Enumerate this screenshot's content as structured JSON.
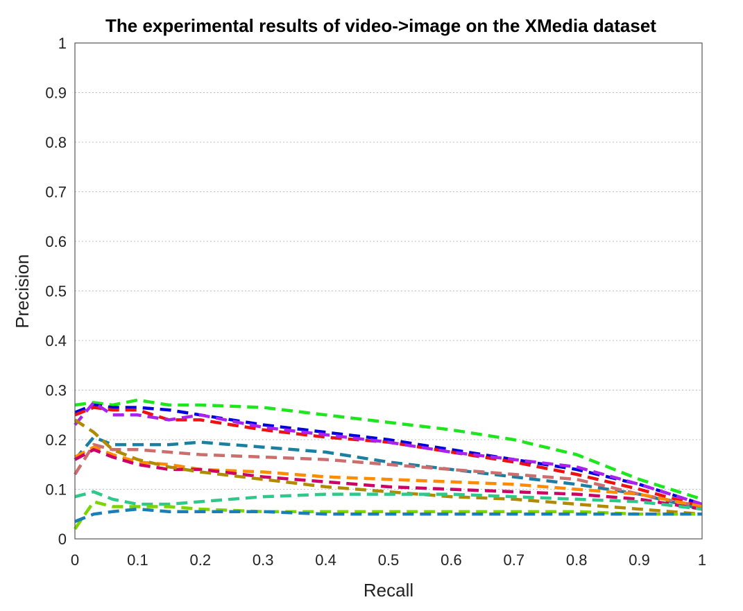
{
  "chart_data": {
    "type": "line",
    "title": "The experimental results of video->image on the XMedia dataset",
    "xlabel": "Recall",
    "ylabel": "Precision",
    "xlim": [
      0,
      1
    ],
    "ylim": [
      0,
      1
    ],
    "xticks": [
      "0",
      "0.1",
      "0.2",
      "0.3",
      "0.4",
      "0.5",
      "0.6",
      "0.7",
      "0.8",
      "0.9",
      "1"
    ],
    "yticks": [
      "0",
      "0.1",
      "0.2",
      "0.3",
      "0.4",
      "0.5",
      "0.6",
      "0.7",
      "0.8",
      "0.9",
      "1"
    ],
    "grid": "horizontal dotted",
    "x": [
      0,
      0.03,
      0.06,
      0.1,
      0.15,
      0.2,
      0.3,
      0.4,
      0.5,
      0.6,
      0.7,
      0.8,
      0.9,
      1.0
    ],
    "series": [
      {
        "color": "#1ee61e",
        "values": [
          0.27,
          0.275,
          0.27,
          0.28,
          0.27,
          0.27,
          0.265,
          0.25,
          0.235,
          0.22,
          0.2,
          0.17,
          0.12,
          0.08
        ]
      },
      {
        "color": "#0000dd",
        "values": [
          0.255,
          0.27,
          0.265,
          0.265,
          0.26,
          0.25,
          0.23,
          0.215,
          0.2,
          0.18,
          0.16,
          0.14,
          0.11,
          0.07
        ]
      },
      {
        "color": "#ee1111",
        "values": [
          0.25,
          0.265,
          0.26,
          0.26,
          0.24,
          0.24,
          0.22,
          0.205,
          0.195,
          0.175,
          0.155,
          0.13,
          0.1,
          0.065
        ]
      },
      {
        "color": "#aa22ee",
        "values": [
          0.23,
          0.275,
          0.25,
          0.25,
          0.24,
          0.25,
          0.225,
          0.21,
          0.195,
          0.175,
          0.16,
          0.145,
          0.11,
          0.07
        ]
      },
      {
        "color": "#1a7fa0",
        "values": [
          0.16,
          0.205,
          0.19,
          0.19,
          0.19,
          0.195,
          0.185,
          0.175,
          0.155,
          0.14,
          0.125,
          0.11,
          0.09,
          0.06
        ]
      },
      {
        "color": "#cc6e6e",
        "values": [
          0.13,
          0.19,
          0.18,
          0.18,
          0.175,
          0.17,
          0.165,
          0.16,
          0.15,
          0.14,
          0.13,
          0.12,
          0.09,
          0.065
        ]
      },
      {
        "color": "#ff8c00",
        "values": [
          0.165,
          0.185,
          0.17,
          0.155,
          0.15,
          0.14,
          0.135,
          0.125,
          0.12,
          0.115,
          0.11,
          0.1,
          0.09,
          0.065
        ]
      },
      {
        "color": "#cc0066",
        "values": [
          0.16,
          0.18,
          0.165,
          0.15,
          0.14,
          0.14,
          0.125,
          0.115,
          0.105,
          0.1,
          0.095,
          0.09,
          0.08,
          0.06
        ]
      },
      {
        "color": "#b08a00",
        "values": [
          0.24,
          0.215,
          0.18,
          0.16,
          0.145,
          0.135,
          0.12,
          0.105,
          0.095,
          0.085,
          0.08,
          0.07,
          0.06,
          0.05
        ]
      },
      {
        "color": "#2ec98a",
        "values": [
          0.085,
          0.095,
          0.08,
          0.07,
          0.07,
          0.075,
          0.085,
          0.09,
          0.09,
          0.09,
          0.085,
          0.08,
          0.075,
          0.06
        ]
      },
      {
        "color": "#7cd400",
        "values": [
          0.02,
          0.075,
          0.065,
          0.065,
          0.065,
          0.06,
          0.055,
          0.055,
          0.055,
          0.055,
          0.055,
          0.055,
          0.05,
          0.05
        ]
      },
      {
        "color": "#1a7fb8",
        "values": [
          0.035,
          0.05,
          0.055,
          0.06,
          0.055,
          0.055,
          0.055,
          0.05,
          0.05,
          0.05,
          0.05,
          0.05,
          0.05,
          0.05
        ]
      }
    ]
  }
}
